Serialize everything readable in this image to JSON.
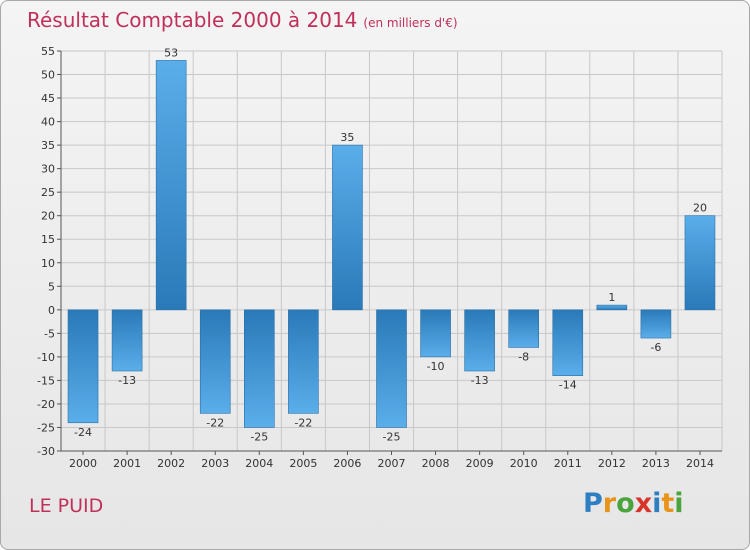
{
  "header": {
    "title": "Résultat Comptable 2000 à 2014",
    "subtitle": "(en milliers d'€)"
  },
  "footer": {
    "commune": "LE PUID",
    "logo": "Proxiti"
  },
  "colors": {
    "title": "#c0305a",
    "bar_top": "#5aaeea",
    "bar_bottom": "#2a79b8",
    "grid": "#c8c8c8"
  },
  "chart_data": {
    "type": "bar",
    "title": "Résultat Comptable 2000 à 2014",
    "subtitle": "(en milliers d'€)",
    "xlabel": "",
    "ylabel": "",
    "ylim": [
      -30,
      55
    ],
    "ytick_step": 5,
    "yticks": [
      "55",
      "50",
      "45",
      "40",
      "35",
      "30",
      "25",
      "20",
      "15",
      "10",
      "5",
      "0",
      "-5",
      "-10",
      "-15",
      "-20",
      "-25",
      "-30"
    ],
    "grid": true,
    "categories": [
      "2000",
      "2001",
      "2002",
      "2003",
      "2004",
      "2005",
      "2006",
      "2007",
      "2008",
      "2009",
      "2010",
      "2011",
      "2012",
      "2013",
      "2014"
    ],
    "values": [
      -24,
      -13,
      53,
      -22,
      -25,
      -22,
      35,
      -25,
      -10,
      -13,
      -8,
      -14,
      1,
      -6,
      20
    ],
    "value_labels": [
      "-24",
      "-13",
      "53",
      "-22",
      "-25",
      "-22",
      "35",
      "-25",
      "-10",
      "-13",
      "-8",
      "-14",
      "1",
      "-6",
      "20"
    ]
  }
}
